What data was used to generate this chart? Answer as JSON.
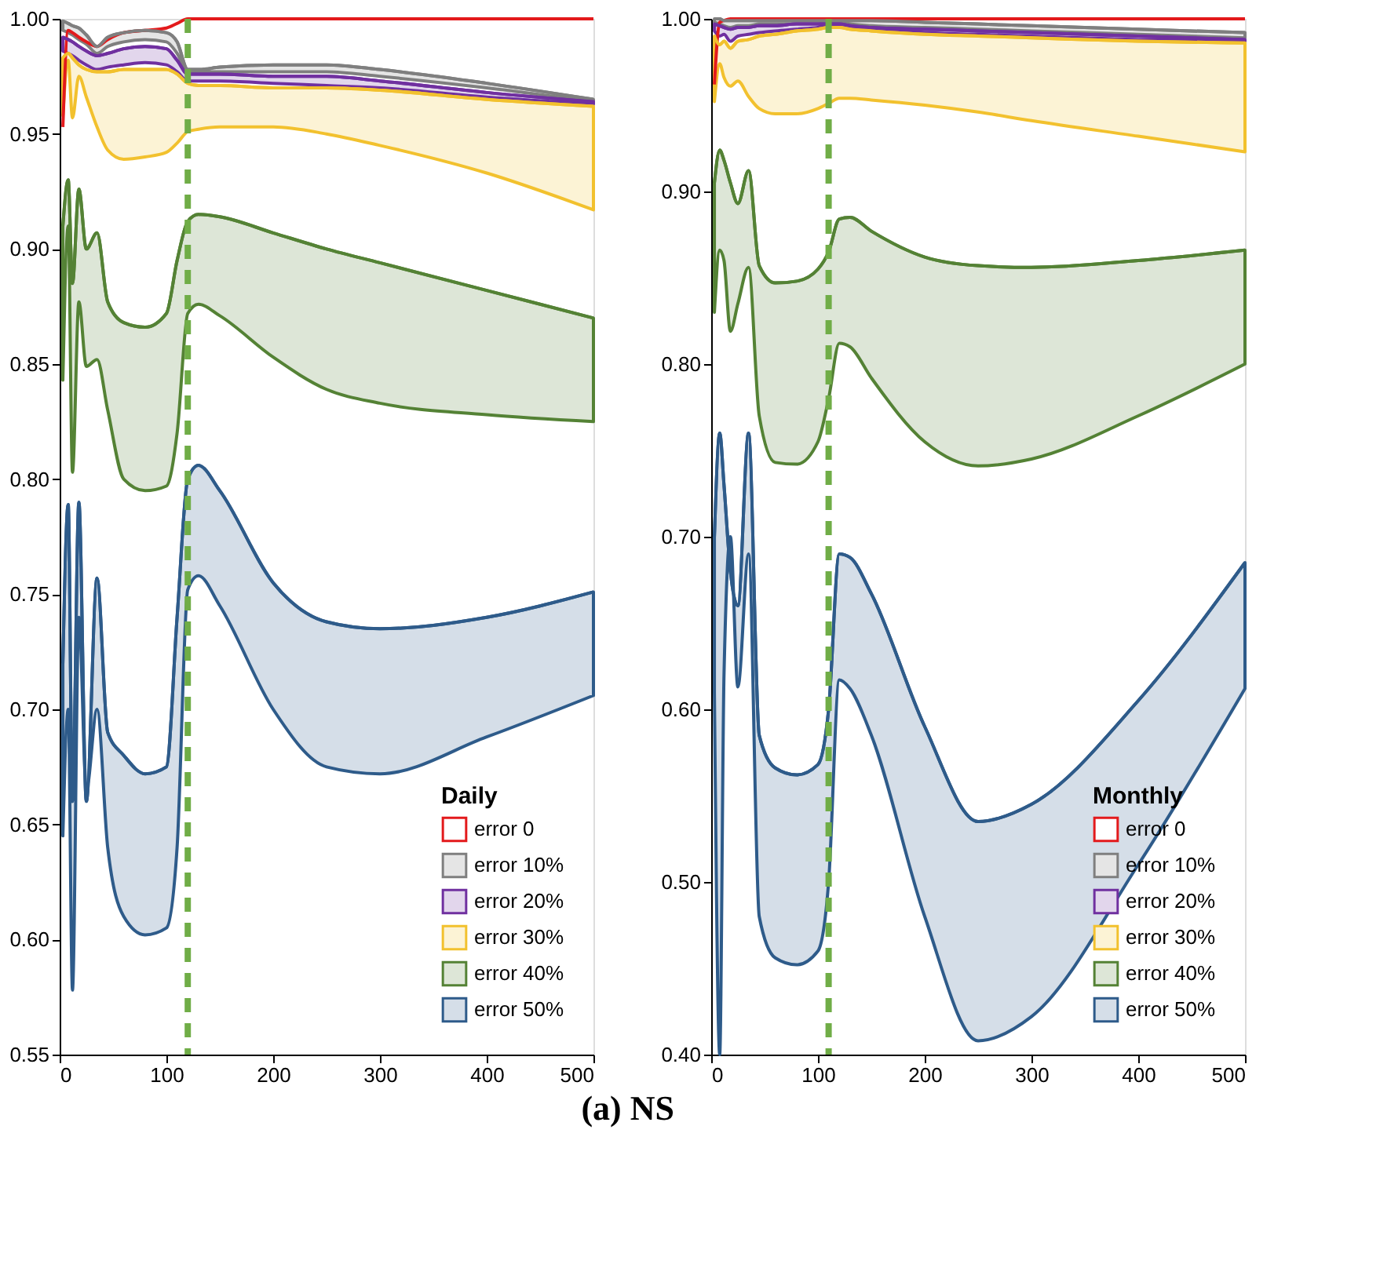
{
  "chart_data": [
    {
      "type": "line",
      "legend_title": "Daily",
      "legend": "bottom right",
      "annotations": [
        "(a) NS"
      ],
      "x": [
        3,
        8,
        12,
        18,
        25,
        35,
        45,
        60,
        80,
        100,
        110,
        120,
        130,
        150,
        200,
        250,
        300,
        400,
        500
      ],
      "xlim": [
        0,
        500
      ],
      "xticks": [
        0,
        100,
        200,
        300,
        400,
        500
      ],
      "ylim": [
        0.55,
        1.0
      ],
      "yticks": [
        0.55,
        {
          "value": 0.6,
          "label": "0.60"
        },
        0.65,
        {
          "value": 0.7,
          "label": "0.70"
        },
        0.75,
        {
          "value": 0.8,
          "label": "0.80"
        },
        0.85,
        {
          "value": 0.9,
          "label": "0.90"
        },
        0.95,
        {
          "value": 1.0,
          "label": "1.00"
        }
      ],
      "ref_lines": [
        {
          "axis": "x",
          "value": 120,
          "color": "#70ad47",
          "line_style": "dashed"
        }
      ],
      "series": [
        {
          "name": "error 0",
          "color": "#e31a1c",
          "type": "line",
          "values": [
            0.953,
            0.995,
            0.994,
            0.992,
            0.99,
            0.988,
            0.991,
            0.994,
            0.995,
            0.996,
            0.998,
            1.0,
            1.0,
            1.0,
            1.0,
            1.0,
            1.0,
            1.0,
            1.0
          ]
        },
        {
          "name": "error 10%",
          "color": "#7f7f7f",
          "values": [
            0.999,
            0.998,
            0.997,
            0.996,
            0.993,
            0.988,
            0.992,
            0.994,
            0.995,
            0.994,
            0.99,
            0.978,
            0.978,
            0.979,
            0.98,
            0.98,
            0.978,
            0.972,
            0.965
          ],
          "upper": [
            0.999,
            0.998,
            0.997,
            0.996,
            0.993,
            0.988,
            0.992,
            0.994,
            0.995,
            0.994,
            0.99,
            0.978,
            0.978,
            0.979,
            0.98,
            0.98,
            0.978,
            0.972,
            0.965
          ],
          "lower": [
            0.995,
            0.994,
            0.993,
            0.991,
            0.989,
            0.985,
            0.988,
            0.99,
            0.991,
            0.99,
            0.985,
            0.977,
            0.977,
            0.977,
            0.977,
            0.977,
            0.975,
            0.97,
            0.964
          ]
        },
        {
          "name": "error 20%",
          "color": "#7030a0",
          "values": [
            0.992,
            0.991,
            0.99,
            0.988,
            0.986,
            0.984,
            0.985,
            0.987,
            0.988,
            0.987,
            0.982,
            0.976,
            0.976,
            0.976,
            0.975,
            0.975,
            0.973,
            0.968,
            0.964
          ],
          "upper": [
            0.992,
            0.991,
            0.99,
            0.988,
            0.986,
            0.984,
            0.985,
            0.987,
            0.988,
            0.987,
            0.982,
            0.976,
            0.976,
            0.976,
            0.975,
            0.975,
            0.973,
            0.968,
            0.964
          ],
          "lower": [
            0.986,
            0.985,
            0.984,
            0.982,
            0.98,
            0.978,
            0.979,
            0.98,
            0.981,
            0.98,
            0.977,
            0.973,
            0.973,
            0.973,
            0.972,
            0.971,
            0.97,
            0.966,
            0.963
          ]
        },
        {
          "name": "error 30%",
          "color": "#f2c12e",
          "values": [
            0.983,
            0.985,
            0.983,
            0.98,
            0.978,
            0.977,
            0.977,
            0.978,
            0.978,
            0.978,
            0.976,
            0.972,
            0.971,
            0.971,
            0.97,
            0.97,
            0.969,
            0.965,
            0.962
          ],
          "upper": [
            0.983,
            0.985,
            0.983,
            0.98,
            0.978,
            0.977,
            0.977,
            0.978,
            0.978,
            0.978,
            0.976,
            0.972,
            0.971,
            0.971,
            0.97,
            0.97,
            0.969,
            0.965,
            0.962
          ],
          "lower": [
            0.958,
            0.982,
            0.957,
            0.975,
            0.966,
            0.953,
            0.943,
            0.939,
            0.94,
            0.942,
            0.946,
            0.951,
            0.952,
            0.953,
            0.953,
            0.95,
            0.945,
            0.933,
            0.917
          ]
        },
        {
          "name": "error 40%",
          "color": "#548235",
          "values": [
            0.91,
            0.93,
            0.885,
            0.926,
            0.9,
            0.907,
            0.877,
            0.868,
            0.866,
            0.872,
            0.895,
            0.912,
            0.915,
            0.914,
            0.907,
            0.9,
            0.894,
            0.882,
            0.87
          ],
          "upper": [
            0.91,
            0.93,
            0.885,
            0.926,
            0.9,
            0.907,
            0.877,
            0.868,
            0.866,
            0.872,
            0.895,
            0.912,
            0.915,
            0.914,
            0.907,
            0.9,
            0.894,
            0.882,
            0.87
          ],
          "lower": [
            0.843,
            0.91,
            0.803,
            0.877,
            0.849,
            0.852,
            0.83,
            0.8,
            0.795,
            0.797,
            0.82,
            0.872,
            0.876,
            0.871,
            0.853,
            0.839,
            0.833,
            0.828,
            0.825
          ]
        },
        {
          "name": "error 50%",
          "color": "#2e5b8a",
          "values": [
            0.72,
            0.789,
            0.66,
            0.79,
            0.66,
            0.757,
            0.69,
            0.68,
            0.672,
            0.675,
            0.74,
            0.8,
            0.806,
            0.795,
            0.755,
            0.738,
            0.735,
            0.74,
            0.751
          ],
          "upper": [
            0.72,
            0.789,
            0.66,
            0.79,
            0.66,
            0.757,
            0.69,
            0.68,
            0.672,
            0.675,
            0.74,
            0.8,
            0.806,
            0.795,
            0.755,
            0.738,
            0.735,
            0.74,
            0.751
          ],
          "lower": [
            0.645,
            0.7,
            0.578,
            0.74,
            0.665,
            0.7,
            0.64,
            0.61,
            0.602,
            0.605,
            0.64,
            0.752,
            0.758,
            0.745,
            0.7,
            0.675,
            0.672,
            0.688,
            0.706
          ]
        }
      ]
    },
    {
      "type": "line",
      "legend_title": "Monthly",
      "legend": "bottom right",
      "x": [
        3,
        8,
        12,
        18,
        25,
        35,
        45,
        60,
        80,
        100,
        110,
        120,
        130,
        150,
        200,
        250,
        300,
        400,
        500
      ],
      "xlim": [
        0,
        500
      ],
      "xticks": [
        0,
        100,
        200,
        300,
        400,
        500
      ],
      "ylim": [
        0.4,
        1.0
      ],
      "yticks": [
        {
          "value": 0.4,
          "label": "0.40"
        },
        {
          "value": 0.5,
          "label": "0.50"
        },
        {
          "value": 0.6,
          "label": "0.60"
        },
        {
          "value": 0.7,
          "label": "0.70"
        },
        {
          "value": 0.8,
          "label": "0.80"
        },
        {
          "value": 0.9,
          "label": "0.90"
        },
        {
          "value": 1.0,
          "label": "1.00"
        }
      ],
      "ref_lines": [
        {
          "axis": "x",
          "value": 110,
          "color": "#70ad47",
          "line_style": "dashed"
        }
      ],
      "series": [
        {
          "name": "error 0",
          "color": "#e31a1c",
          "type": "line",
          "values": [
            0.962,
            0.998,
            0.999,
            1.0,
            1.0,
            1.0,
            1.0,
            1.0,
            1.0,
            1.0,
            1.0,
            1.0,
            1.0,
            1.0,
            1.0,
            1.0,
            1.0,
            1.0,
            1.0
          ]
        },
        {
          "name": "error 10%",
          "color": "#7f7f7f",
          "values": [
            1.0,
            1.0,
            0.999,
            0.999,
            0.999,
            0.999,
            0.999,
            0.999,
            0.999,
            0.999,
            0.999,
            0.999,
            0.999,
            0.999,
            0.998,
            0.997,
            0.996,
            0.994,
            0.992
          ],
          "upper": [
            1.0,
            1.0,
            0.999,
            0.999,
            0.999,
            0.999,
            0.999,
            0.999,
            0.999,
            0.999,
            0.999,
            0.999,
            0.999,
            0.999,
            0.998,
            0.997,
            0.996,
            0.994,
            0.992
          ],
          "lower": [
            0.998,
            0.997,
            0.996,
            0.995,
            0.996,
            0.996,
            0.997,
            0.997,
            0.997,
            0.997,
            0.998,
            0.998,
            0.997,
            0.996,
            0.995,
            0.994,
            0.993,
            0.991,
            0.989
          ]
        },
        {
          "name": "error 20%",
          "color": "#7030a0",
          "values": [
            0.997,
            0.996,
            0.995,
            0.994,
            0.995,
            0.995,
            0.996,
            0.996,
            0.997,
            0.997,
            0.997,
            0.997,
            0.996,
            0.995,
            0.994,
            0.993,
            0.992,
            0.99,
            0.988
          ],
          "upper": [
            0.997,
            0.996,
            0.995,
            0.994,
            0.995,
            0.995,
            0.996,
            0.996,
            0.997,
            0.997,
            0.997,
            0.997,
            0.996,
            0.995,
            0.994,
            0.993,
            0.992,
            0.99,
            0.988
          ],
          "lower": [
            0.993,
            0.99,
            0.991,
            0.987,
            0.99,
            0.991,
            0.992,
            0.993,
            0.994,
            0.995,
            0.996,
            0.996,
            0.995,
            0.994,
            0.992,
            0.991,
            0.99,
            0.988,
            0.987
          ]
        },
        {
          "name": "error 30%",
          "color": "#f2c12e",
          "values": [
            0.99,
            0.985,
            0.987,
            0.983,
            0.987,
            0.988,
            0.99,
            0.991,
            0.993,
            0.994,
            0.995,
            0.995,
            0.994,
            0.993,
            0.991,
            0.99,
            0.989,
            0.987,
            0.986
          ],
          "upper": [
            0.99,
            0.985,
            0.987,
            0.983,
            0.987,
            0.988,
            0.99,
            0.991,
            0.993,
            0.994,
            0.995,
            0.995,
            0.994,
            0.993,
            0.991,
            0.99,
            0.989,
            0.987,
            0.986
          ],
          "lower": [
            0.952,
            0.974,
            0.966,
            0.961,
            0.964,
            0.955,
            0.948,
            0.945,
            0.945,
            0.948,
            0.951,
            0.954,
            0.954,
            0.953,
            0.95,
            0.946,
            0.941,
            0.932,
            0.923
          ]
        },
        {
          "name": "error 40%",
          "color": "#548235",
          "values": [
            0.905,
            0.924,
            0.918,
            0.905,
            0.893,
            0.912,
            0.857,
            0.847,
            0.848,
            0.855,
            0.865,
            0.884,
            0.885,
            0.877,
            0.862,
            0.857,
            0.856,
            0.86,
            0.866
          ],
          "upper": [
            0.905,
            0.924,
            0.918,
            0.905,
            0.893,
            0.912,
            0.857,
            0.847,
            0.848,
            0.855,
            0.865,
            0.884,
            0.885,
            0.877,
            0.862,
            0.857,
            0.856,
            0.86,
            0.866
          ],
          "lower": [
            0.83,
            0.866,
            0.86,
            0.819,
            0.835,
            0.856,
            0.77,
            0.743,
            0.742,
            0.755,
            0.78,
            0.812,
            0.81,
            0.792,
            0.755,
            0.741,
            0.745,
            0.77,
            0.8
          ]
        },
        {
          "name": "error 50%",
          "color": "#2e5b8a",
          "values": [
            0.7,
            0.76,
            0.73,
            0.68,
            0.66,
            0.76,
            0.585,
            0.566,
            0.562,
            0.568,
            0.6,
            0.69,
            0.688,
            0.667,
            0.59,
            0.535,
            0.545,
            0.605,
            0.685
          ],
          "upper": [
            0.7,
            0.76,
            0.73,
            0.68,
            0.66,
            0.76,
            0.585,
            0.566,
            0.562,
            0.568,
            0.6,
            0.69,
            0.688,
            0.667,
            0.59,
            0.535,
            0.545,
            0.605,
            0.685
          ],
          "lower": [
            0.61,
            0.4,
            0.62,
            0.7,
            0.613,
            0.69,
            0.48,
            0.456,
            0.452,
            0.46,
            0.5,
            0.617,
            0.612,
            0.585,
            0.48,
            0.408,
            0.422,
            0.51,
            0.612
          ]
        }
      ]
    }
  ]
}
